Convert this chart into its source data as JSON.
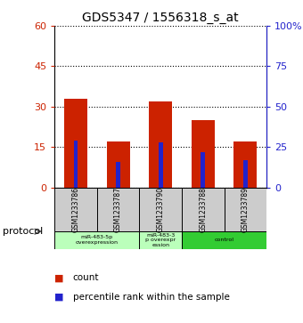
{
  "title": "GDS5347 / 1556318_s_at",
  "samples": [
    "GSM1233786",
    "GSM1233787",
    "GSM1233790",
    "GSM1233788",
    "GSM1233789"
  ],
  "count_values": [
    33,
    17,
    32,
    25,
    17
  ],
  "percentile_values": [
    29,
    16,
    28,
    22,
    17
  ],
  "left_ylim": [
    0,
    60
  ],
  "right_ylim": [
    0,
    100
  ],
  "left_yticks": [
    0,
    15,
    30,
    45,
    60
  ],
  "right_yticks": [
    0,
    25,
    50,
    75,
    100
  ],
  "right_yticklabels": [
    "0",
    "25",
    "50",
    "75",
    "100%"
  ],
  "bar_color": "#CC2200",
  "percentile_color": "#2222CC",
  "groups": [
    {
      "start": 0,
      "end": 1,
      "label": "miR-483-5p\noverexpression",
      "color": "#bbffbb"
    },
    {
      "start": 2,
      "end": 2,
      "label": "miR-483-3\np overexpr\nession",
      "color": "#bbffbb"
    },
    {
      "start": 3,
      "end": 4,
      "label": "control",
      "color": "#33cc33"
    }
  ],
  "protocol_label": "protocol",
  "legend_count_label": "count",
  "legend_percentile_label": "percentile rank within the sample",
  "sample_bg_color": "#cccccc",
  "plot_bg_color": "#ffffff"
}
